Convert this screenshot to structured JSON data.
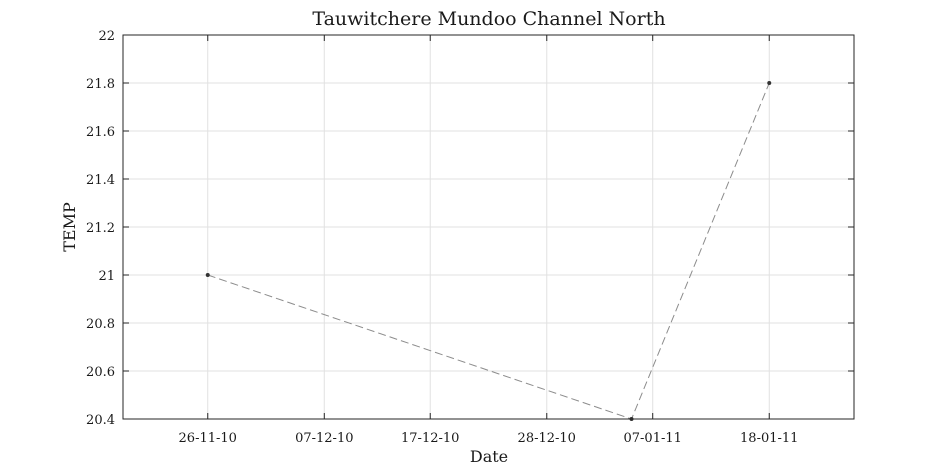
{
  "chart_data": {
    "type": "line",
    "title": "Tauwitchere Mundoo Channel North",
    "xlabel": "Date",
    "ylabel": "TEMP",
    "x_type": "date",
    "xlim": [
      "2010-11-18",
      "2011-01-26"
    ],
    "ylim": [
      20.4,
      22
    ],
    "x_ticks": [
      {
        "date": "2010-11-26",
        "label": "26-11-10"
      },
      {
        "date": "2010-12-07",
        "label": "07-12-10"
      },
      {
        "date": "2010-12-17",
        "label": "17-12-10"
      },
      {
        "date": "2010-12-28",
        "label": "28-12-10"
      },
      {
        "date": "2011-01-07",
        "label": "07-01-11"
      },
      {
        "date": "2011-01-18",
        "label": "18-01-11"
      }
    ],
    "y_ticks": [
      20.4,
      20.6,
      20.8,
      21,
      21.2,
      21.4,
      21.6,
      21.8,
      22
    ],
    "grid": true,
    "series": [
      {
        "x": [
          "2010-11-26",
          "2011-01-05",
          "2011-01-18"
        ],
        "y": [
          21.0,
          20.4,
          21.8
        ],
        "line_color": "#8c8c8c",
        "marker_color": "#333333"
      }
    ]
  }
}
